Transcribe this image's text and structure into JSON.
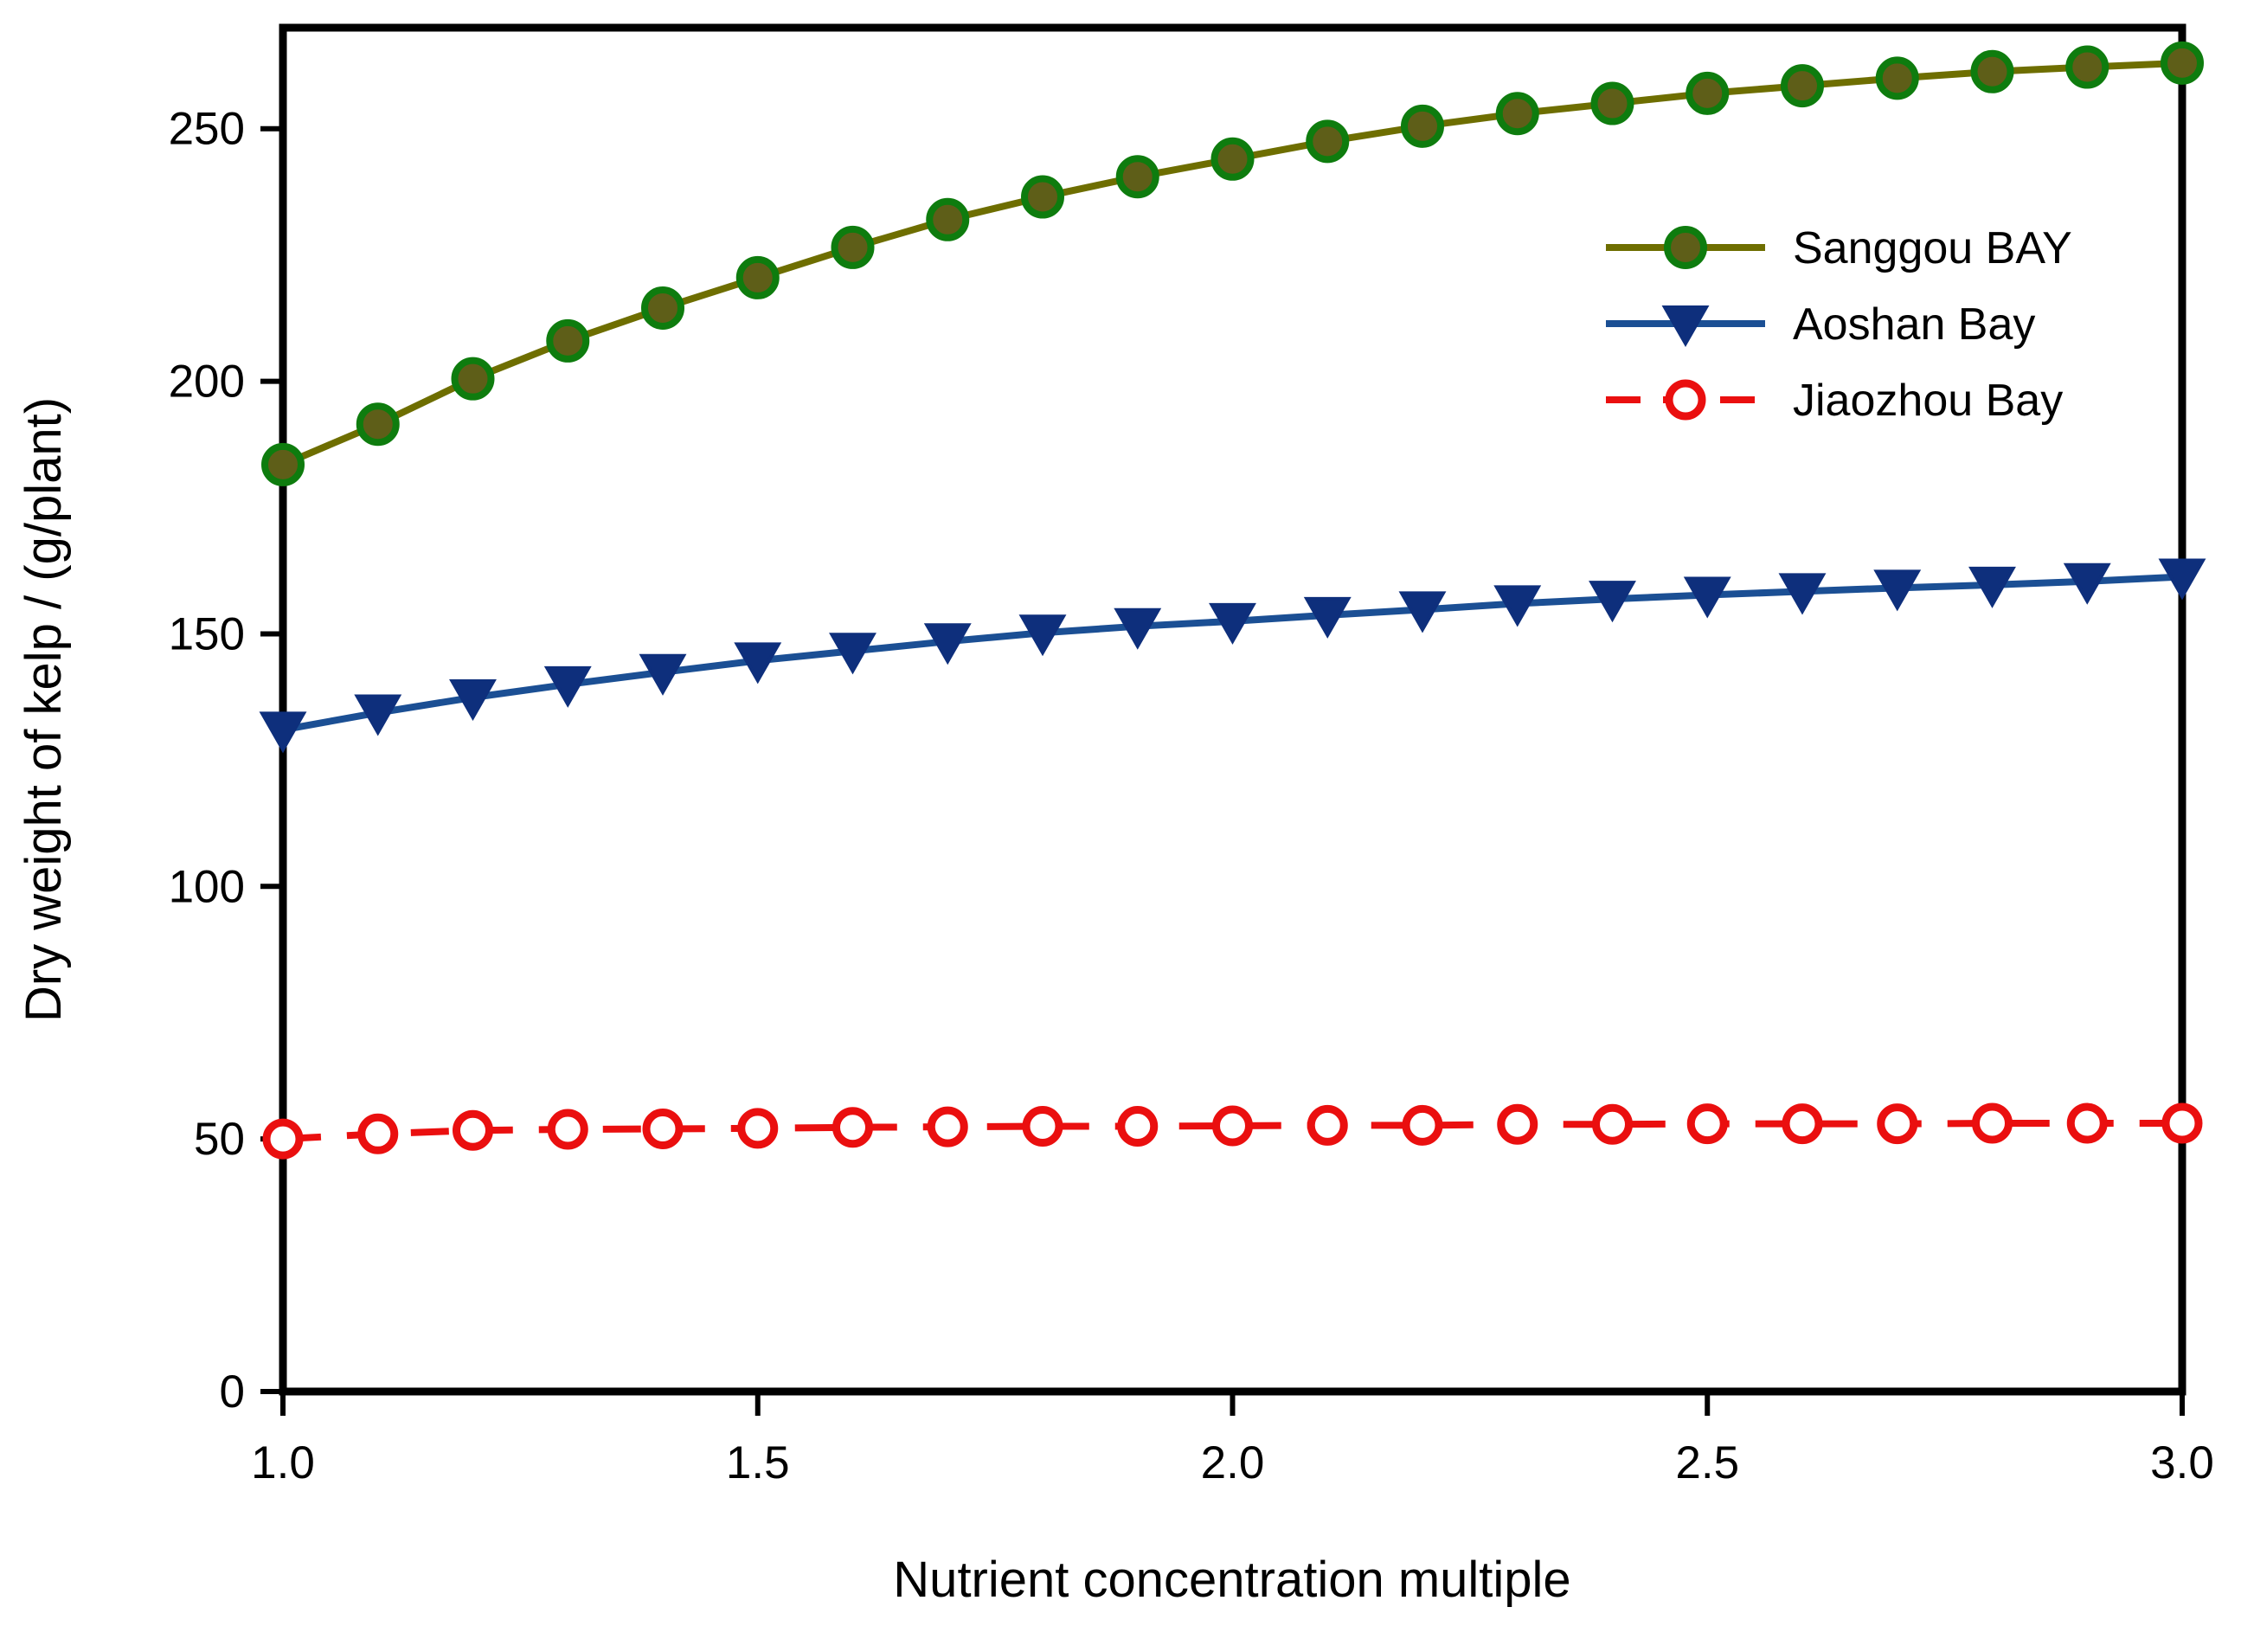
{
  "chart_data": {
    "type": "line",
    "title": "",
    "xlabel": "Nutrient concentration multiple",
    "ylabel": "Dry weight of kelp / (g/plant)",
    "xlim": [
      1.0,
      3.0
    ],
    "ylim": [
      0,
      270
    ],
    "grid": false,
    "legend_position": "upper right inside",
    "xticks": [
      1.0,
      1.5,
      2.0,
      2.5,
      3.0
    ],
    "xtick_labels": [
      "1.0",
      "1.5",
      "2.0",
      "2.5",
      "3.0"
    ],
    "yticks": [
      0,
      50,
      100,
      150,
      200,
      250
    ],
    "ytick_labels": [
      "0",
      "50",
      "100",
      "150",
      "200",
      "250"
    ],
    "x": [
      1.0,
      1.1,
      1.2,
      1.3,
      1.4,
      1.5,
      1.6,
      1.7,
      1.8,
      1.9,
      2.0,
      2.1,
      2.2,
      2.3,
      2.4,
      2.5,
      2.6,
      2.7,
      2.8,
      2.9,
      3.0
    ],
    "series": [
      {
        "name": "Sanggou BAY",
        "marker": "filled-circle",
        "line_style": "solid",
        "line_color": "#6e6e00",
        "marker_fill": "#5e5e18",
        "marker_edge": "#0e7c0e",
        "values": [
          183.5,
          191.5,
          200.5,
          208.0,
          214.5,
          220.5,
          226.5,
          232.0,
          236.5,
          240.5,
          244.0,
          247.5,
          250.5,
          253.0,
          255.0,
          257.0,
          258.5,
          260.0,
          261.3,
          262.2,
          263.0
        ]
      },
      {
        "name": "Aoshan Bay",
        "marker": "triangle-down",
        "line_style": "solid",
        "line_color": "#1b4f94",
        "marker_fill": "#0e2f7c",
        "marker_edge": "#0e2f7c",
        "values": [
          131.0,
          134.4,
          137.4,
          140.0,
          142.4,
          144.7,
          146.6,
          148.5,
          150.2,
          151.5,
          152.5,
          153.7,
          154.8,
          156.0,
          156.9,
          157.7,
          158.4,
          159.1,
          159.7,
          160.4,
          161.3
        ]
      },
      {
        "name": "Jiaozhou Bay",
        "marker": "open-circle",
        "line_style": "dashed",
        "line_color": "#ea0f0f",
        "marker_fill": "#ffffff",
        "marker_edge": "#ea0f0f",
        "values": [
          50.0,
          51.0,
          51.7,
          51.9,
          52.0,
          52.1,
          52.3,
          52.4,
          52.5,
          52.5,
          52.6,
          52.7,
          52.7,
          52.9,
          52.9,
          53.0,
          53.0,
          53.0,
          53.1,
          53.1,
          53.1
        ]
      }
    ]
  }
}
